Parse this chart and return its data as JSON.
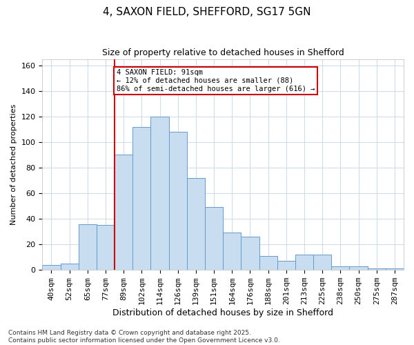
{
  "title1": "4, SAXON FIELD, SHEFFORD, SG17 5GN",
  "title2": "Size of property relative to detached houses in Shefford",
  "xlabel": "Distribution of detached houses by size in Shefford",
  "ylabel": "Number of detached properties",
  "categories": [
    "40sqm",
    "52sqm",
    "65sqm",
    "77sqm",
    "89sqm",
    "102sqm",
    "114sqm",
    "126sqm",
    "139sqm",
    "151sqm",
    "164sqm",
    "176sqm",
    "188sqm",
    "201sqm",
    "213sqm",
    "225sqm",
    "238sqm",
    "250sqm",
    "275sqm",
    "287sqm"
  ],
  "values": [
    4,
    5,
    36,
    35,
    90,
    112,
    120,
    108,
    72,
    49,
    29,
    26,
    11,
    7,
    12,
    12,
    3,
    3,
    1,
    1
  ],
  "bar_color": "#c8ddf0",
  "bar_edge_color": "#6699cc",
  "property_line_index": 4,
  "annotation_text": "4 SAXON FIELD: 91sqm\n← 12% of detached houses are smaller (88)\n86% of semi-detached houses are larger (616) →",
  "annotation_box_facecolor": "#ffffff",
  "annotation_box_edgecolor": "#cc0000",
  "footnote": "Contains HM Land Registry data © Crown copyright and database right 2025.\nContains public sector information licensed under the Open Government Licence v3.0.",
  "bg_color": "#ffffff",
  "plot_bg_color": "#ffffff",
  "grid_color": "#d0dce8",
  "ylim": [
    0,
    165
  ],
  "yticks": [
    0,
    20,
    40,
    60,
    80,
    100,
    120,
    140,
    160
  ],
  "title1_fontsize": 11,
  "title2_fontsize": 9,
  "xlabel_fontsize": 9,
  "ylabel_fontsize": 8,
  "tick_fontsize": 8,
  "annot_fontsize": 7.5,
  "footnote_fontsize": 6.5
}
